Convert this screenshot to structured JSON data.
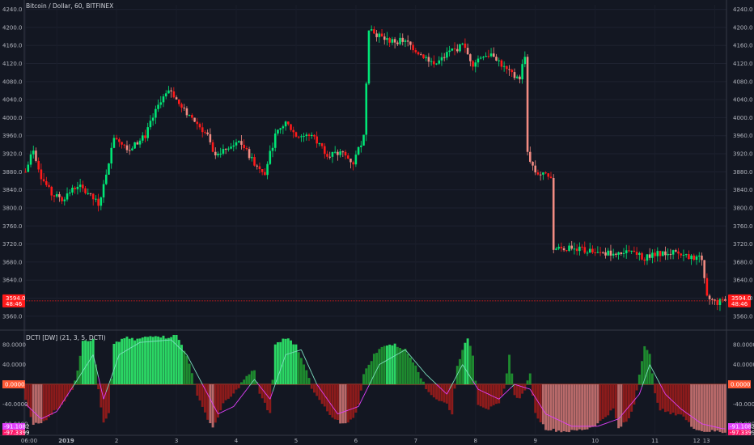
{
  "header": {
    "symbol_title": "Bitcoin / Dollar, 60, BITFINEX"
  },
  "indicator": {
    "title": "DCTI [DW] (21, 3, 5, DCTI)"
  },
  "price_axis": {
    "ticks": [
      "4240.0",
      "4200.0",
      "4160.0",
      "4120.0",
      "4080.0",
      "4040.0",
      "4000.0",
      "3960.0",
      "3920.0",
      "3880.0",
      "3840.0",
      "3800.0",
      "3760.0",
      "3720.0",
      "3680.0",
      "3640.0",
      "3600.0",
      "3560.0"
    ],
    "last_price": "3594.0",
    "last_price_sub": "48:46"
  },
  "indicator_axis": {
    "ticks": [
      "80.0000",
      "40.0000",
      "-40.0000",
      "-80.0000"
    ],
    "zero_label": "0.0000",
    "val1": "-91.1082",
    "val2": "-97.3399"
  },
  "time_axis": {
    "labels": [
      "06:00",
      "2019",
      "2",
      "3",
      "4",
      "5",
      "6",
      "7",
      "8",
      "9",
      "10",
      "11",
      "12",
      "13"
    ]
  },
  "colors": {
    "background": "#131722",
    "up_candle": "#00e676",
    "down_candle": "#ff1a1a",
    "down_light": "#f28b82",
    "last_price": "#ff1a1a",
    "bull_bar": "#1e8a2f",
    "bear_bar": "#8c1b1b",
    "signal_up": "#7de0c0",
    "signal_down": "#e040fb",
    "zero_line": "#ff5a36"
  },
  "chart_data": [
    {
      "type": "candlestick",
      "title": "Bitcoin / Dollar, 60, BITFINEX",
      "ylim": [
        3540,
        4250
      ],
      "waypoints": [
        [
          0,
          3880
        ],
        [
          3,
          3930
        ],
        [
          6,
          3870
        ],
        [
          10,
          3830
        ],
        [
          14,
          3820
        ],
        [
          20,
          3850
        ],
        [
          24,
          3830
        ],
        [
          28,
          3810
        ],
        [
          30,
          3850
        ],
        [
          34,
          3960
        ],
        [
          40,
          3930
        ],
        [
          46,
          3960
        ],
        [
          52,
          4040
        ],
        [
          56,
          4060
        ],
        [
          60,
          4020
        ],
        [
          64,
          4000
        ],
        [
          70,
          3960
        ],
        [
          72,
          3920
        ],
        [
          78,
          3930
        ],
        [
          82,
          3950
        ],
        [
          88,
          3900
        ],
        [
          92,
          3880
        ],
        [
          96,
          3960
        ],
        [
          100,
          3990
        ],
        [
          104,
          3960
        ],
        [
          110,
          3960
        ],
        [
          116,
          3920
        ],
        [
          122,
          3920
        ],
        [
          126,
          3900
        ],
        [
          130,
          3960
        ],
        [
          132,
          4200
        ],
        [
          136,
          4180
        ],
        [
          140,
          4170
        ],
        [
          146,
          4170
        ],
        [
          152,
          4140
        ],
        [
          158,
          4120
        ],
        [
          162,
          4140
        ],
        [
          168,
          4160
        ],
        [
          172,
          4120
        ],
        [
          176,
          4140
        ],
        [
          180,
          4140
        ],
        [
          184,
          4110
        ],
        [
          188,
          4090
        ],
        [
          190,
          4090
        ],
        [
          192,
          4140
        ],
        [
          193,
          3920
        ],
        [
          196,
          3880
        ],
        [
          200,
          3870
        ],
        [
          202,
          3860
        ],
        [
          203,
          3710
        ],
        [
          212,
          3710
        ],
        [
          220,
          3700
        ],
        [
          226,
          3700
        ],
        [
          232,
          3700
        ],
        [
          238,
          3690
        ],
        [
          244,
          3700
        ],
        [
          250,
          3700
        ],
        [
          256,
          3690
        ],
        [
          260,
          3690
        ],
        [
          262,
          3600
        ],
        [
          266,
          3590
        ],
        [
          268,
          3594
        ]
      ],
      "last": 3594.0
    },
    {
      "type": "bar",
      "title": "DCTI [DW] (21, 3, 5, DCTI)",
      "ylim": [
        -100,
        100
      ],
      "waypoints": [
        [
          0,
          -30
        ],
        [
          3,
          -80
        ],
        [
          6,
          -80
        ],
        [
          10,
          -60
        ],
        [
          14,
          -40
        ],
        [
          18,
          -10
        ],
        [
          20,
          30
        ],
        [
          22,
          90
        ],
        [
          26,
          90
        ],
        [
          28,
          -10
        ],
        [
          30,
          -80
        ],
        [
          32,
          -60
        ],
        [
          34,
          80
        ],
        [
          38,
          95
        ],
        [
          42,
          90
        ],
        [
          46,
          95
        ],
        [
          50,
          100
        ],
        [
          54,
          95
        ],
        [
          58,
          100
        ],
        [
          62,
          60
        ],
        [
          66,
          -20
        ],
        [
          70,
          -70
        ],
        [
          72,
          -90
        ],
        [
          76,
          -40
        ],
        [
          80,
          -20
        ],
        [
          84,
          10
        ],
        [
          88,
          30
        ],
        [
          90,
          -20
        ],
        [
          92,
          -40
        ],
        [
          94,
          -60
        ],
        [
          96,
          80
        ],
        [
          100,
          95
        ],
        [
          104,
          80
        ],
        [
          108,
          30
        ],
        [
          110,
          -10
        ],
        [
          114,
          -40
        ],
        [
          118,
          -70
        ],
        [
          122,
          -80
        ],
        [
          126,
          -70
        ],
        [
          128,
          -40
        ],
        [
          130,
          20
        ],
        [
          134,
          60
        ],
        [
          138,
          80
        ],
        [
          142,
          80
        ],
        [
          146,
          70
        ],
        [
          150,
          40
        ],
        [
          154,
          -10
        ],
        [
          158,
          -30
        ],
        [
          162,
          -40
        ],
        [
          164,
          -60
        ],
        [
          166,
          40
        ],
        [
          170,
          95
        ],
        [
          172,
          60
        ],
        [
          174,
          -40
        ],
        [
          178,
          -50
        ],
        [
          182,
          -40
        ],
        [
          184,
          -10
        ],
        [
          186,
          60
        ],
        [
          188,
          -20
        ],
        [
          190,
          -30
        ],
        [
          192,
          -10
        ],
        [
          194,
          20
        ],
        [
          196,
          -60
        ],
        [
          200,
          -90
        ],
        [
          206,
          -95
        ],
        [
          210,
          -95
        ],
        [
          216,
          -90
        ],
        [
          220,
          -80
        ],
        [
          224,
          -60
        ],
        [
          226,
          -50
        ],
        [
          228,
          -90
        ],
        [
          232,
          -70
        ],
        [
          234,
          -40
        ],
        [
          236,
          20
        ],
        [
          238,
          80
        ],
        [
          240,
          60
        ],
        [
          242,
          -20
        ],
        [
          244,
          -50
        ],
        [
          248,
          -60
        ],
        [
          252,
          -60
        ],
        [
          256,
          -85
        ],
        [
          260,
          -95
        ],
        [
          266,
          -95
        ],
        [
          268,
          -97
        ]
      ],
      "signal_waypoints": [
        [
          0,
          -40
        ],
        [
          6,
          -70
        ],
        [
          12,
          -55
        ],
        [
          20,
          10
        ],
        [
          26,
          60
        ],
        [
          30,
          -30
        ],
        [
          36,
          60
        ],
        [
          44,
          85
        ],
        [
          56,
          90
        ],
        [
          62,
          60
        ],
        [
          68,
          0
        ],
        [
          74,
          -60
        ],
        [
          80,
          -45
        ],
        [
          88,
          10
        ],
        [
          94,
          -30
        ],
        [
          100,
          60
        ],
        [
          106,
          70
        ],
        [
          112,
          0
        ],
        [
          120,
          -60
        ],
        [
          128,
          -45
        ],
        [
          136,
          40
        ],
        [
          146,
          70
        ],
        [
          154,
          20
        ],
        [
          162,
          -20
        ],
        [
          168,
          40
        ],
        [
          174,
          -10
        ],
        [
          182,
          -30
        ],
        [
          188,
          0
        ],
        [
          194,
          -10
        ],
        [
          200,
          -60
        ],
        [
          210,
          -85
        ],
        [
          220,
          -85
        ],
        [
          228,
          -70
        ],
        [
          236,
          -20
        ],
        [
          240,
          40
        ],
        [
          246,
          -20
        ],
        [
          252,
          -50
        ],
        [
          260,
          -80
        ],
        [
          268,
          -90
        ]
      ]
    }
  ]
}
